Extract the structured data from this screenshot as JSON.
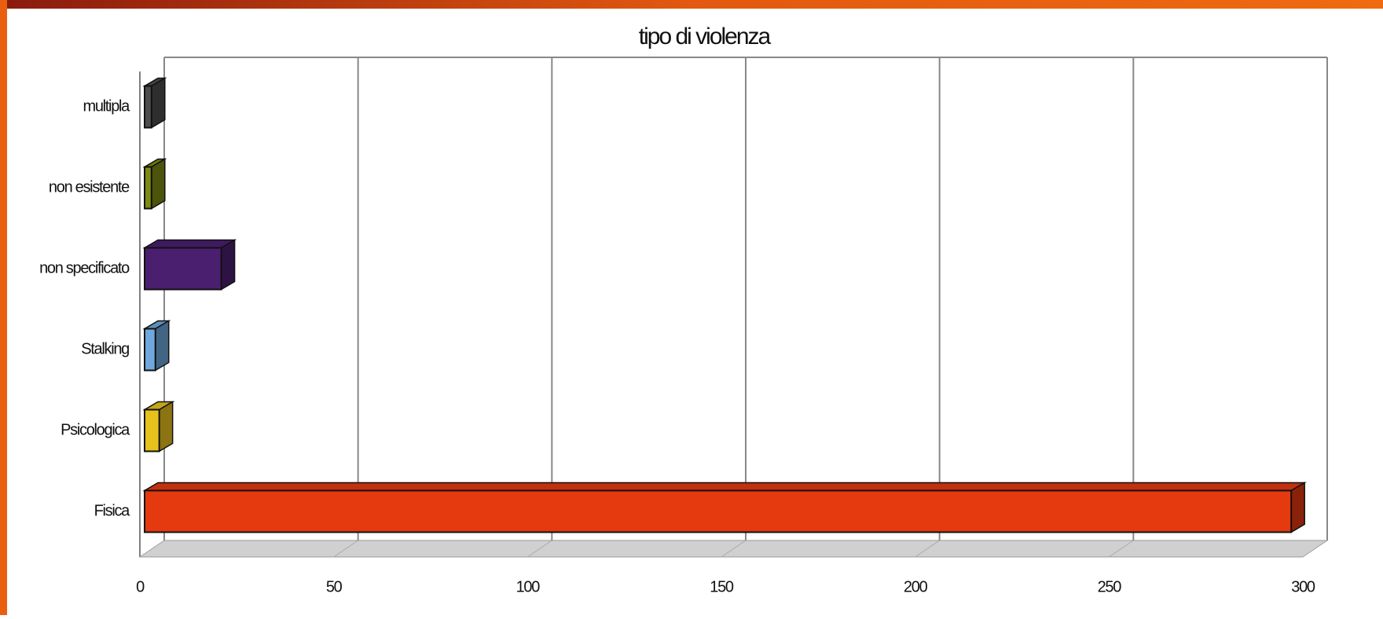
{
  "chart_data": {
    "type": "bar",
    "orientation": "horizontal",
    "title": "tipo di violenza",
    "categories": [
      "Fisica",
      "Psicologica",
      "Stalking",
      "non specificato",
      "non esistente",
      "multipla"
    ],
    "values": [
      297,
      5,
      4,
      21,
      3,
      3
    ],
    "colors": [
      "#e5390f",
      "#e8c21c",
      "#6fa8dc",
      "#4b1f6f",
      "#7e8b12",
      "#4d4d4d"
    ],
    "xlim": [
      0,
      300
    ],
    "xticks": [
      0,
      50,
      100,
      150,
      200,
      250,
      300
    ],
    "grid": true
  }
}
